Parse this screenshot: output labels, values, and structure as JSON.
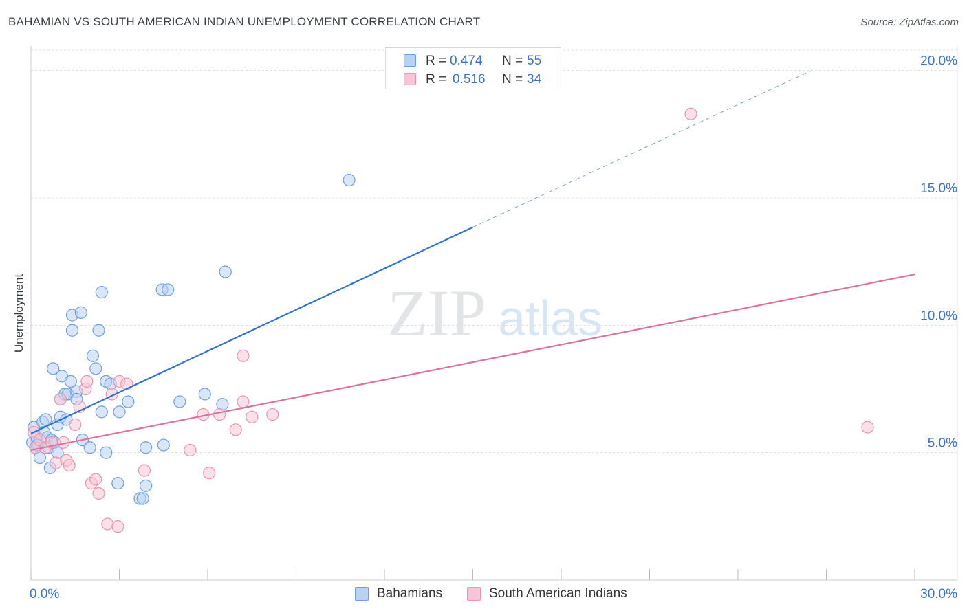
{
  "header": {
    "title": "BAHAMIAN VS SOUTH AMERICAN INDIAN UNEMPLOYMENT CORRELATION CHART",
    "source": "Source: ZipAtlas.com"
  },
  "watermark": {
    "part1": "ZIP",
    "part2": "atlas"
  },
  "colors": {
    "blue_fill": "#b9d2f3",
    "blue_stroke": "#6f9fe0",
    "blue_line": "#2f72d0",
    "pink_fill": "#f7c6d6",
    "pink_stroke": "#ea94b1",
    "pink_line": "#e0709a",
    "tick_label": "#3a72c6",
    "grid": "#dcdfe3"
  },
  "legend": {
    "r_label": "R =",
    "n_label": "N =",
    "rows": [
      {
        "series": "Bahamians",
        "r": "0.474",
        "n": "55"
      },
      {
        "series": "South American Indians",
        "r": "0.516",
        "n": "34"
      }
    ]
  },
  "chart_data": {
    "type": "scatter",
    "title": "BAHAMIAN VS SOUTH AMERICAN INDIAN UNEMPLOYMENT CORRELATION CHART",
    "xlabel": "",
    "ylabel": "Unemployment",
    "xlim": [
      0,
      30
    ],
    "ylim": [
      0,
      20.8
    ],
    "x_tick_labels": [
      {
        "value": 0,
        "label": "0.0%"
      },
      {
        "value": 30,
        "label": "30.0%"
      }
    ],
    "x_minor_ticks": [
      0,
      3,
      6,
      9,
      12,
      15,
      18,
      21,
      24,
      27,
      30
    ],
    "y_ticks": [
      {
        "value": 5,
        "label": "5.0%"
      },
      {
        "value": 10,
        "label": "10.0%"
      },
      {
        "value": 15,
        "label": "15.0%"
      },
      {
        "value": 20,
        "label": "20.0%"
      }
    ],
    "grid": "horizontal dashed",
    "series": [
      {
        "name": "Bahamians",
        "color": "blue",
        "r": 0.474,
        "n": 55,
        "trend": {
          "x0": 0,
          "y0": 5.75,
          "x1": 15.0,
          "y1": 13.85,
          "dash_to_x": 26.5,
          "dash_to_y": 20.0
        },
        "points": [
          [
            0.05,
            5.4
          ],
          [
            0.1,
            6.0
          ],
          [
            0.15,
            5.2
          ],
          [
            0.2,
            5.6
          ],
          [
            0.25,
            5.3
          ],
          [
            0.3,
            4.8
          ],
          [
            0.4,
            6.2
          ],
          [
            0.45,
            5.8
          ],
          [
            0.5,
            6.3
          ],
          [
            0.55,
            5.6
          ],
          [
            0.6,
            5.2
          ],
          [
            0.65,
            4.4
          ],
          [
            0.7,
            5.5
          ],
          [
            0.75,
            8.3
          ],
          [
            0.8,
            5.4
          ],
          [
            0.9,
            6.1
          ],
          [
            0.9,
            5.0
          ],
          [
            1.0,
            6.4
          ],
          [
            1.0,
            7.1
          ],
          [
            1.05,
            8.0
          ],
          [
            1.15,
            7.3
          ],
          [
            1.2,
            6.3
          ],
          [
            1.25,
            7.3
          ],
          [
            1.35,
            7.8
          ],
          [
            1.4,
            9.8
          ],
          [
            1.4,
            10.4
          ],
          [
            1.55,
            7.4
          ],
          [
            1.55,
            7.1
          ],
          [
            1.7,
            10.5
          ],
          [
            1.75,
            5.5
          ],
          [
            2.0,
            5.2
          ],
          [
            2.1,
            8.8
          ],
          [
            2.2,
            8.3
          ],
          [
            2.3,
            9.8
          ],
          [
            2.4,
            6.6
          ],
          [
            2.4,
            11.3
          ],
          [
            2.55,
            5.0
          ],
          [
            2.55,
            7.8
          ],
          [
            2.7,
            7.7
          ],
          [
            2.95,
            3.8
          ],
          [
            3.0,
            6.6
          ],
          [
            3.3,
            7.0
          ],
          [
            3.7,
            3.2
          ],
          [
            3.8,
            3.2
          ],
          [
            3.9,
            3.7
          ],
          [
            3.9,
            5.2
          ],
          [
            4.5,
            5.3
          ],
          [
            4.45,
            11.4
          ],
          [
            4.65,
            11.4
          ],
          [
            5.05,
            7.0
          ],
          [
            5.9,
            7.3
          ],
          [
            6.6,
            12.1
          ],
          [
            6.5,
            6.9
          ],
          [
            10.8,
            15.7
          ],
          [
            0.2,
            5.3
          ]
        ]
      },
      {
        "name": "South American Indians",
        "color": "pink",
        "r": 0.516,
        "n": 34,
        "trend": {
          "x0": 0,
          "y0": 5.1,
          "x1": 30.0,
          "y1": 12.0
        },
        "points": [
          [
            0.1,
            5.8
          ],
          [
            0.15,
            5.2
          ],
          [
            0.3,
            5.5
          ],
          [
            0.5,
            5.2
          ],
          [
            0.7,
            5.4
          ],
          [
            0.85,
            4.6
          ],
          [
            1.0,
            7.1
          ],
          [
            1.1,
            5.4
          ],
          [
            1.2,
            4.7
          ],
          [
            1.3,
            4.5
          ],
          [
            1.5,
            6.1
          ],
          [
            1.65,
            6.8
          ],
          [
            1.85,
            7.5
          ],
          [
            1.9,
            7.8
          ],
          [
            2.05,
            3.8
          ],
          [
            2.2,
            3.95
          ],
          [
            2.3,
            3.4
          ],
          [
            2.6,
            2.2
          ],
          [
            2.75,
            7.3
          ],
          [
            2.95,
            2.1
          ],
          [
            3.0,
            7.8
          ],
          [
            3.25,
            7.7
          ],
          [
            3.85,
            4.3
          ],
          [
            5.4,
            5.1
          ],
          [
            6.05,
            4.2
          ],
          [
            5.85,
            6.5
          ],
          [
            6.4,
            6.5
          ],
          [
            6.95,
            5.9
          ],
          [
            7.2,
            8.8
          ],
          [
            7.2,
            7.0
          ],
          [
            7.5,
            6.4
          ],
          [
            8.2,
            6.5
          ],
          [
            22.4,
            18.3
          ],
          [
            28.4,
            6.0
          ]
        ]
      }
    ]
  }
}
